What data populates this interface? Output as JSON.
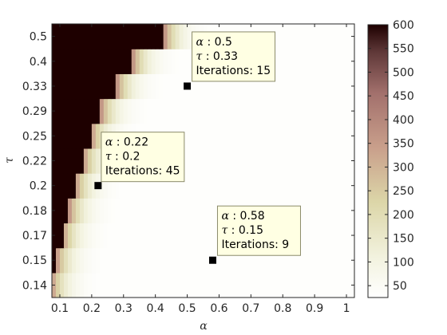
{
  "chart_data": {
    "type": "heatmap",
    "title": "",
    "xlabel": "α",
    "ylabel": "τ",
    "x_categories": [
      "0.1",
      "0.15",
      "0.2",
      "0.25",
      "0.3",
      "0.35",
      "0.4",
      "0.45",
      "0.5",
      "0.55",
      "0.6",
      "0.65",
      "0.7",
      "0.75",
      "0.8",
      "0.85",
      "0.9",
      "0.95",
      "1"
    ],
    "x_tick_labels": [
      "0.1",
      "0.2",
      "0.3",
      "0.4",
      "0.5",
      "0.6",
      "0.7",
      "0.8",
      "0.9",
      "1"
    ],
    "y_categories": [
      "0.14",
      "0.15",
      "0.17",
      "0.18",
      "0.2",
      "0.22",
      "0.25",
      "0.29",
      "0.33",
      "0.4",
      "0.5"
    ],
    "description_of_values": "Iteration count per (alpha, tau). Black (600) region at low alpha/high tau, decaying to near white elsewhere.",
    "black_boundary_alpha_by_tau": {
      "0.5": 0.43,
      "0.4": 0.33,
      "0.33": 0.28,
      "0.29": 0.23,
      "0.25": 0.2,
      "0.22": 0.175,
      "0.2": 0.15,
      "0.18": 0.13,
      "0.17": 0.11,
      "0.15": 0.09,
      "0.14": 0.075
    },
    "colorbar": {
      "min": 25,
      "max": 600,
      "ticks": [
        "600",
        "550",
        "500",
        "450",
        "400",
        "350",
        "300",
        "250",
        "200",
        "150",
        "100",
        "50"
      ],
      "colormap": "pink-reversed"
    },
    "datatips": [
      {
        "alpha_label": "α",
        "alpha_value": "0.5",
        "tau_label": "τ",
        "tau_value": "0.33",
        "iter_label": "Iterations",
        "iter_value": "15",
        "x": 0.5,
        "y": "0.33"
      },
      {
        "alpha_label": "α",
        "alpha_value": "0.22",
        "tau_label": "τ",
        "tau_value": "0.2",
        "iter_label": "Iterations",
        "iter_value": "45",
        "x": 0.22,
        "y": "0.2"
      },
      {
        "alpha_label": "α",
        "alpha_value": "0.58",
        "tau_label": "τ",
        "tau_value": "0.15",
        "iter_label": "Iterations",
        "iter_value": "9",
        "x": 0.58,
        "y": "0.15"
      }
    ]
  }
}
